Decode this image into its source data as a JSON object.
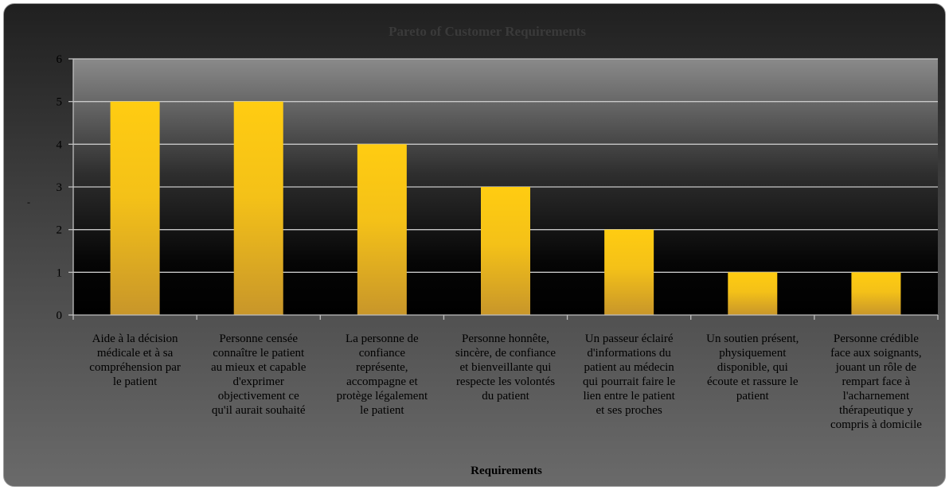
{
  "chart_data": {
    "type": "bar",
    "title": "Pareto of Customer Requirements",
    "xlabel": "Requirements",
    "ylabel": "-",
    "ylim": [
      0,
      6
    ],
    "yticks": [
      0,
      1,
      2,
      3,
      4,
      5,
      6
    ],
    "grid": true,
    "legend": "none",
    "categories": [
      [
        "Aide à la décision",
        "médicale et à sa",
        "compréhension par",
        "le patient"
      ],
      [
        "Personne censée",
        "connaître le patient",
        "au mieux et capable",
        "d'exprimer",
        "objectivement ce",
        "qu'il aurait souhaité"
      ],
      [
        "La personne de",
        "confiance",
        "représente,",
        "accompagne et",
        "protège légalement",
        "le patient"
      ],
      [
        "Personne honnête,",
        "sincère, de confiance",
        "et bienveillante qui",
        "respecte les volontés",
        "du patient"
      ],
      [
        "Un passeur éclairé",
        "d'informations du",
        "patient au médecin",
        "qui pourrait faire le",
        "lien entre le patient",
        "et ses proches"
      ],
      [
        "Un soutien présent,",
        "physiquement",
        "disponible, qui",
        "écoute et rassure le",
        "patient"
      ],
      [
        "Personne crédible",
        "face aux soignants,",
        "jouant un rôle de",
        "rempart face à",
        "l'acharnement",
        "thérapeutique y",
        "compris à domicile"
      ]
    ],
    "series": [
      {
        "values": [
          5,
          5,
          4,
          3,
          2,
          1,
          1
        ]
      }
    ],
    "colors": {
      "bar_top": "#ffcc11",
      "bar_bottom": "#c8962a",
      "gridline": "#c8c8c8",
      "axis": "#bfbfbf"
    }
  }
}
